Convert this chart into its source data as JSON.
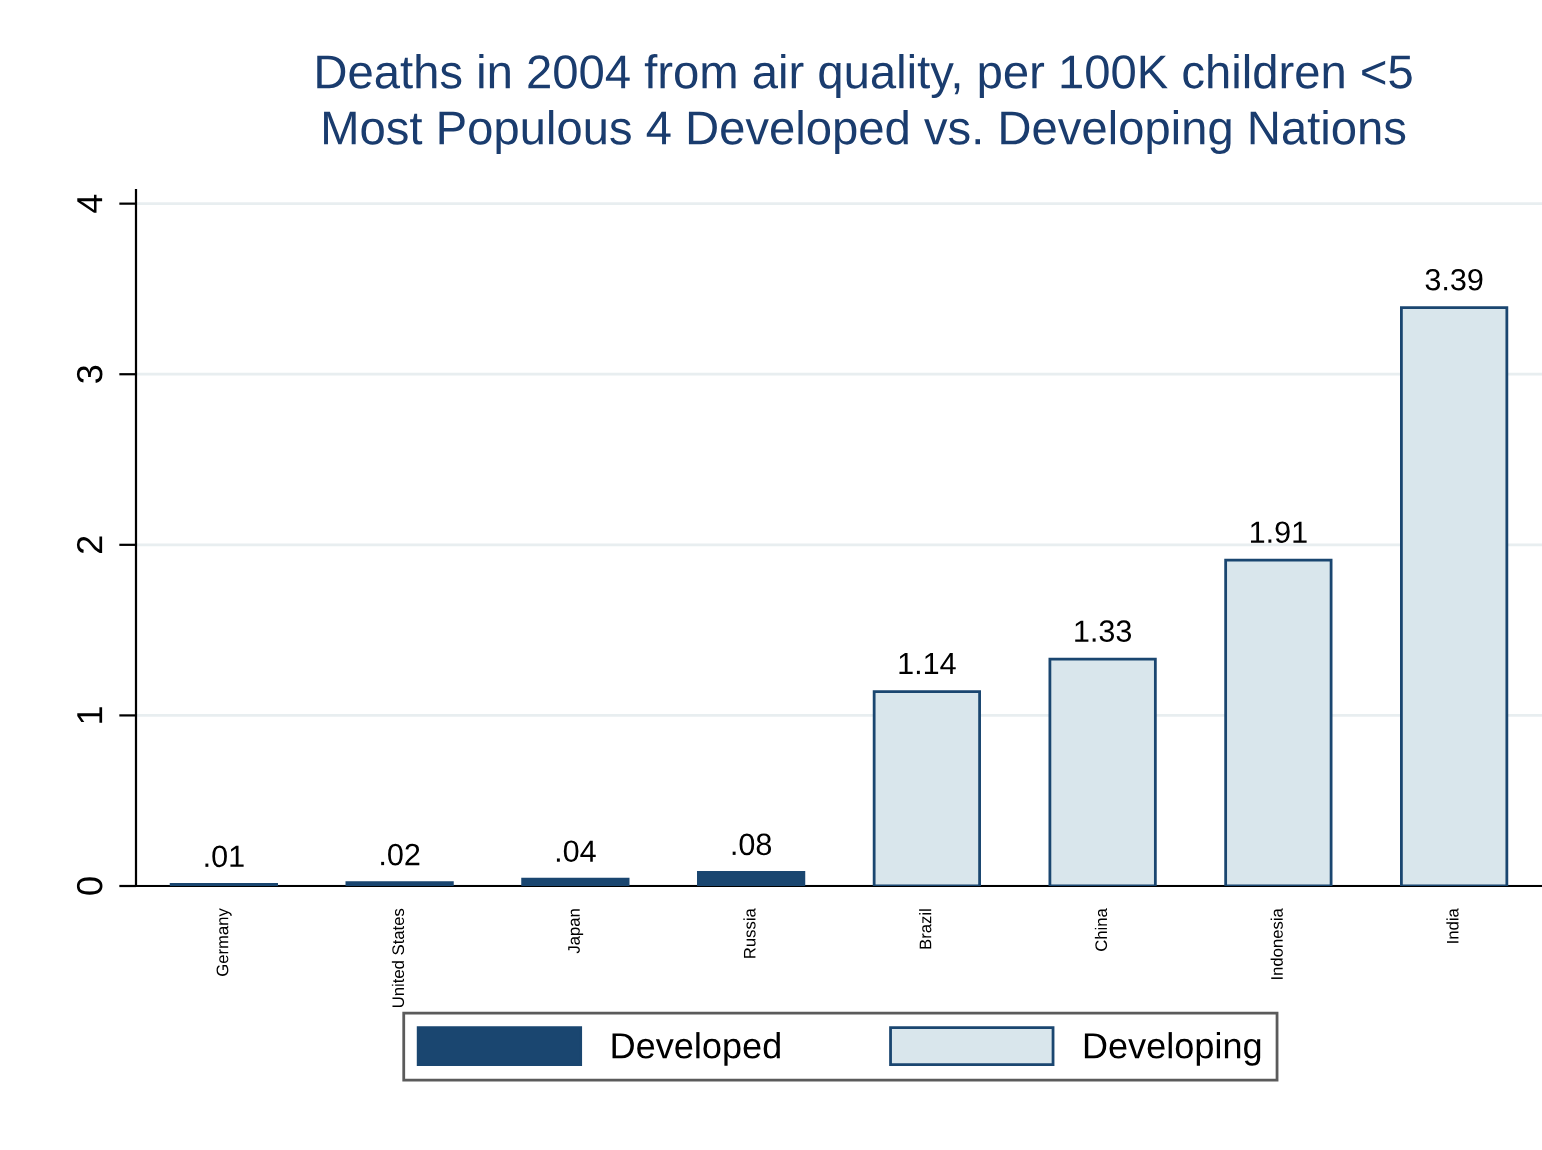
{
  "chart_data": {
    "type": "bar",
    "title": "Deaths in 2004 from air quality, per 100K children <5",
    "subtitle": "Most Populous 4 Developed vs. Developing Nations",
    "categories": [
      "Germany",
      "United States",
      "Japan",
      "Russia",
      "Brazil",
      "China",
      "Indonesia",
      "India"
    ],
    "series": [
      {
        "name": "Developed",
        "color": "#1a4670",
        "values": [
          0.01,
          0.02,
          0.04,
          0.08,
          null,
          null,
          null,
          null
        ],
        "value_labels": [
          ".01",
          ".02",
          ".04",
          ".08",
          null,
          null,
          null,
          null
        ]
      },
      {
        "name": "Developing",
        "color": "#d9e6ec",
        "values": [
          null,
          null,
          null,
          null,
          1.14,
          1.33,
          1.91,
          3.39
        ],
        "value_labels": [
          null,
          null,
          null,
          null,
          "1.14",
          "1.33",
          "1.91",
          "3.39"
        ]
      }
    ],
    "ylim": [
      0,
      4.08
    ],
    "yticks": [
      0,
      1,
      2,
      3,
      4
    ],
    "grid": "y",
    "legend": "bottom"
  }
}
